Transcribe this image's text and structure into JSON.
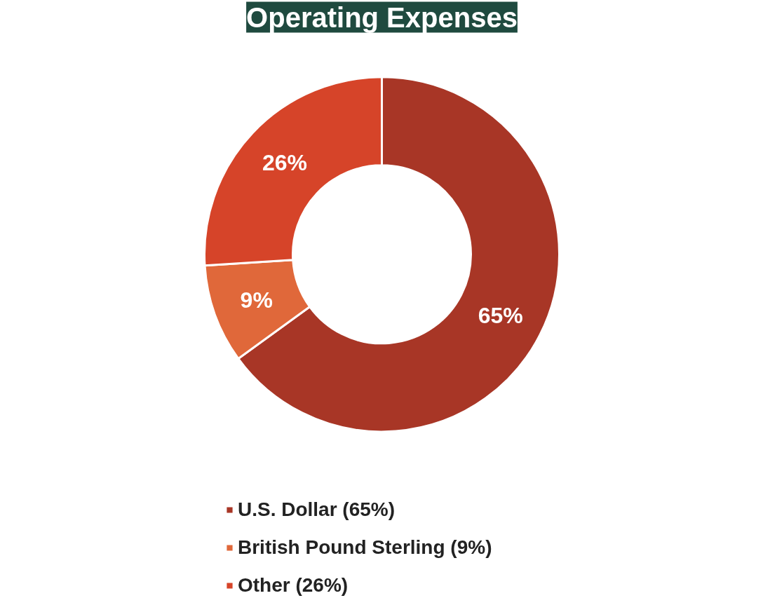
{
  "chart_data": {
    "type": "donut",
    "title": "Operating Expenses",
    "categories": [
      "U.S. Dollar (65%)",
      "British Pound Sterling (9%)",
      "Other (26%)"
    ],
    "values": [
      65,
      9,
      26
    ],
    "colors": [
      "#a83626",
      "#e0683a",
      "#d64429"
    ],
    "value_labels": [
      "65%",
      "9%",
      "26%"
    ],
    "legend": "bottom"
  }
}
